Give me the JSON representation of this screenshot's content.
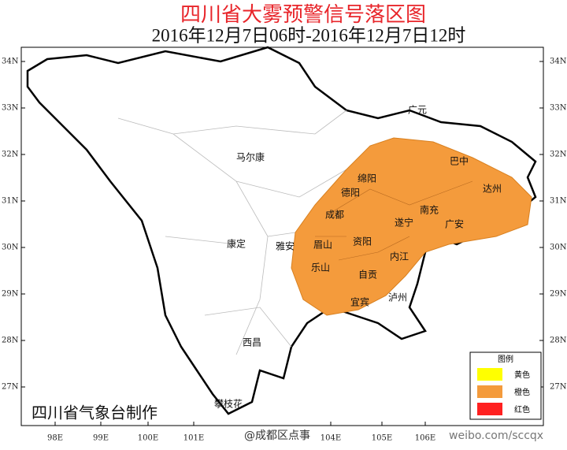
{
  "header": {
    "title": "四川省大雾预警信号落区图",
    "subtitle": "2016年12月7日06时-2016年12月7日12时"
  },
  "latitude_labels": [
    "34N",
    "33N",
    "32N",
    "31N",
    "30N",
    "29N",
    "28N",
    "27N"
  ],
  "longitude_labels": [
    "98E",
    "99E",
    "100E",
    "101E",
    "104E",
    "105E",
    "106E"
  ],
  "cities": [
    "马尔康",
    "广元",
    "巴中",
    "绵阳",
    "德阳",
    "达州",
    "成都",
    "南充",
    "遂宁",
    "广安",
    "康定",
    "雅安",
    "眉山",
    "资阳",
    "内江",
    "乐山",
    "自贡",
    "泸州",
    "宜宾",
    "西昌",
    "攀枝花"
  ],
  "legend": {
    "title": "图例",
    "items": [
      "黄色",
      "橙色",
      "红色"
    ]
  },
  "footer": "四川省气象台制作",
  "watermarks": [
    "@成都区点事",
    "weibo.com/sccqx"
  ]
}
